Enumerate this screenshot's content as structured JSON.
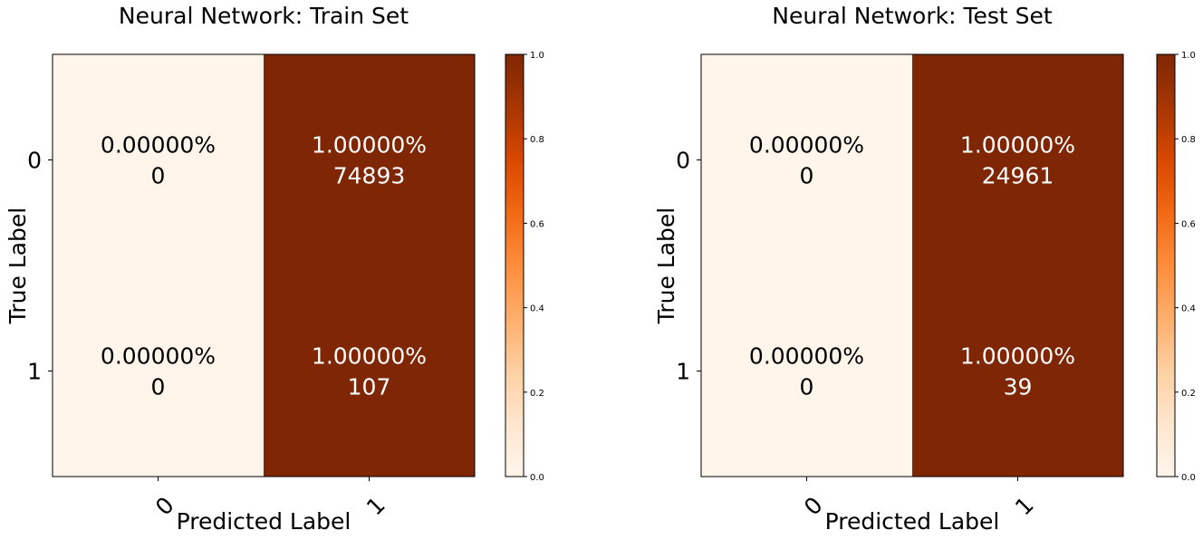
{
  "chart_data": [
    {
      "type": "heatmap",
      "title": "Neural Network: Train Set",
      "xlabel": "Predicted Label",
      "ylabel": "True Label",
      "x_categories": [
        "0",
        "1"
      ],
      "y_categories": [
        "0",
        "1"
      ],
      "cells": [
        [
          {
            "fraction": 0.0,
            "pct_label": "0.00000%",
            "count": "0"
          },
          {
            "fraction": 1.0,
            "pct_label": "1.00000%",
            "count": "74893"
          }
        ],
        [
          {
            "fraction": 0.0,
            "pct_label": "0.00000%",
            "count": "0"
          },
          {
            "fraction": 1.0,
            "pct_label": "1.00000%",
            "count": "107"
          }
        ]
      ],
      "colorbar": {
        "range": [
          0.0,
          1.0
        ],
        "ticks": [
          "0.0",
          "0.2",
          "0.4",
          "0.6",
          "0.8",
          "1.0"
        ],
        "colormap": "Oranges"
      }
    },
    {
      "type": "heatmap",
      "title": "Neural Network: Test Set",
      "xlabel": "Predicted Label",
      "ylabel": "True Label",
      "x_categories": [
        "0",
        "1"
      ],
      "y_categories": [
        "0",
        "1"
      ],
      "cells": [
        [
          {
            "fraction": 0.0,
            "pct_label": "0.00000%",
            "count": "0"
          },
          {
            "fraction": 1.0,
            "pct_label": "1.00000%",
            "count": "24961"
          }
        ],
        [
          {
            "fraction": 0.0,
            "pct_label": "0.00000%",
            "count": "0"
          },
          {
            "fraction": 1.0,
            "pct_label": "1.00000%",
            "count": "39"
          }
        ]
      ],
      "colorbar": {
        "range": [
          0.0,
          1.0
        ],
        "ticks": [
          "0.0",
          "0.2",
          "0.4",
          "0.6",
          "0.8",
          "1.0"
        ],
        "colormap": "Oranges"
      }
    }
  ],
  "colormap_stops": [
    "#fff5eb",
    "#fee6ce",
    "#fdd0a2",
    "#fdae6b",
    "#fd8d3c",
    "#f16913",
    "#d94801",
    "#a63603",
    "#7f2704"
  ]
}
